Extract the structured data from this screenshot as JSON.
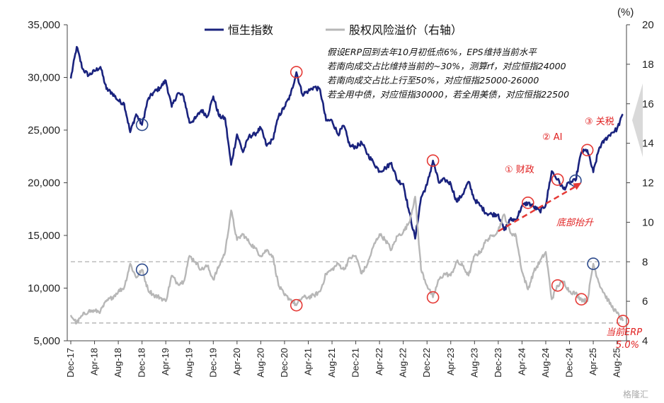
{
  "chart_data": {
    "type": "line",
    "left_axis": {
      "ticks": [
        "35,000",
        "30,000",
        "25,000",
        "20,000",
        "15,000",
        "10,000",
        "5,000"
      ],
      "ylim": [
        5000,
        35000
      ]
    },
    "right_axis": {
      "unit": "(%)",
      "ticks": [
        "20",
        "18",
        "16",
        "14",
        "12",
        "10",
        "8",
        "6",
        "4"
      ],
      "ylim": [
        4,
        20
      ]
    },
    "x_ticks": [
      "Dec-17",
      "Apr-18",
      "Aug-18",
      "Dec-18",
      "Apr-19",
      "Aug-19",
      "Dec-19",
      "Apr-20",
      "Aug-20",
      "Dec-20",
      "Apr-21",
      "Aug-21",
      "Dec-21",
      "Apr-22",
      "Aug-22",
      "Dec-22",
      "Apr-23",
      "Aug-23",
      "Dec-23",
      "Apr-24",
      "Aug-24",
      "Dec-24",
      "Apr-25",
      "Aug-25"
    ],
    "series": [
      {
        "name": "恒生指数",
        "color": "#1a237e",
        "axis": "left",
        "points": [
          [
            "2017-12",
            29900
          ],
          [
            "2018-01",
            32900
          ],
          [
            "2018-02",
            30800
          ],
          [
            "2018-03",
            30200
          ],
          [
            "2018-04",
            30600
          ],
          [
            "2018-05",
            31000
          ],
          [
            "2018-06",
            28900
          ],
          [
            "2018-07",
            28500
          ],
          [
            "2018-08",
            27800
          ],
          [
            "2018-09",
            27500
          ],
          [
            "2018-10",
            24800
          ],
          [
            "2018-11",
            26500
          ],
          [
            "2018-12",
            25500
          ],
          [
            "2019-01",
            27900
          ],
          [
            "2019-02",
            28600
          ],
          [
            "2019-03",
            29000
          ],
          [
            "2019-04",
            29700
          ],
          [
            "2019-05",
            27200
          ],
          [
            "2019-06",
            28500
          ],
          [
            "2019-07",
            28200
          ],
          [
            "2019-08",
            25700
          ],
          [
            "2019-09",
            26100
          ],
          [
            "2019-10",
            26900
          ],
          [
            "2019-11",
            26300
          ],
          [
            "2019-12",
            28200
          ],
          [
            "2020-01",
            26300
          ],
          [
            "2020-02",
            26100
          ],
          [
            "2020-03",
            21700
          ],
          [
            "2020-04",
            24600
          ],
          [
            "2020-05",
            22900
          ],
          [
            "2020-06",
            24400
          ],
          [
            "2020-07",
            24600
          ],
          [
            "2020-08",
            25200
          ],
          [
            "2020-09",
            23500
          ],
          [
            "2020-10",
            24100
          ],
          [
            "2020-11",
            26300
          ],
          [
            "2020-12",
            27200
          ],
          [
            "2021-01",
            28300
          ],
          [
            "2021-02",
            30500
          ],
          [
            "2021-03",
            28400
          ],
          [
            "2021-04",
            28700
          ],
          [
            "2021-05",
            29100
          ],
          [
            "2021-06",
            28800
          ],
          [
            "2021-07",
            25900
          ],
          [
            "2021-08",
            25900
          ],
          [
            "2021-09",
            24600
          ],
          [
            "2021-10",
            25400
          ],
          [
            "2021-11",
            23500
          ],
          [
            "2021-12",
            23400
          ],
          [
            "2022-01",
            23800
          ],
          [
            "2022-02",
            22700
          ],
          [
            "2022-03",
            21900
          ],
          [
            "2022-04",
            21100
          ],
          [
            "2022-05",
            21400
          ],
          [
            "2022-06",
            21900
          ],
          [
            "2022-07",
            20200
          ],
          [
            "2022-08",
            19900
          ],
          [
            "2022-09",
            17200
          ],
          [
            "2022-10",
            14700
          ],
          [
            "2022-11",
            18600
          ],
          [
            "2022-12",
            19800
          ],
          [
            "2023-01",
            22100
          ],
          [
            "2023-02",
            20000
          ],
          [
            "2023-03",
            20300
          ],
          [
            "2023-04",
            19900
          ],
          [
            "2023-05",
            18200
          ],
          [
            "2023-06",
            18900
          ],
          [
            "2023-07",
            20100
          ],
          [
            "2023-08",
            18400
          ],
          [
            "2023-09",
            17800
          ],
          [
            "2023-10",
            17100
          ],
          [
            "2023-11",
            17000
          ],
          [
            "2023-12",
            17000
          ],
          [
            "2024-01",
            15500
          ],
          [
            "2024-02",
            16500
          ],
          [
            "2024-03",
            16500
          ],
          [
            "2024-04",
            17800
          ],
          [
            "2024-05",
            18100
          ],
          [
            "2024-06",
            17700
          ],
          [
            "2024-07",
            17300
          ],
          [
            "2024-08",
            17900
          ],
          [
            "2024-09",
            21100
          ],
          [
            "2024-10",
            20300
          ],
          [
            "2024-11",
            19400
          ],
          [
            "2024-12",
            20000
          ],
          [
            "2025-01",
            20200
          ],
          [
            "2025-02",
            22900
          ],
          [
            "2025-03",
            23100
          ],
          [
            "2025-04",
            21000
          ],
          [
            "2025-05",
            23300
          ],
          [
            "2025-06",
            24100
          ],
          [
            "2025-07",
            24700
          ],
          [
            "2025-08",
            25100
          ],
          [
            "2025-09",
            26500
          ]
        ]
      },
      {
        "name": "股权风险溢价（右轴）",
        "color": "#b7b7b7",
        "axis": "right",
        "points": [
          [
            "2017-12",
            5.3
          ],
          [
            "2018-01",
            4.9
          ],
          [
            "2018-02",
            5.3
          ],
          [
            "2018-03",
            5.5
          ],
          [
            "2018-04",
            5.5
          ],
          [
            "2018-05",
            5.5
          ],
          [
            "2018-06",
            6.0
          ],
          [
            "2018-07",
            6.2
          ],
          [
            "2018-08",
            6.5
          ],
          [
            "2018-09",
            6.7
          ],
          [
            "2018-10",
            7.9
          ],
          [
            "2018-11",
            7.2
          ],
          [
            "2018-12",
            7.6
          ],
          [
            "2019-01",
            6.6
          ],
          [
            "2019-02",
            6.3
          ],
          [
            "2019-03",
            6.2
          ],
          [
            "2019-04",
            6.0
          ],
          [
            "2019-05",
            7.3
          ],
          [
            "2019-06",
            6.9
          ],
          [
            "2019-07",
            7.0
          ],
          [
            "2019-08",
            8.3
          ],
          [
            "2019-09",
            8.0
          ],
          [
            "2019-10",
            7.6
          ],
          [
            "2019-11",
            7.8
          ],
          [
            "2019-12",
            7.1
          ],
          [
            "2020-01",
            7.8
          ],
          [
            "2020-02",
            8.5
          ],
          [
            "2020-03",
            10.6
          ],
          [
            "2020-04",
            9.1
          ],
          [
            "2020-05",
            9.4
          ],
          [
            "2020-06",
            9.0
          ],
          [
            "2020-07",
            8.7
          ],
          [
            "2020-08",
            8.3
          ],
          [
            "2020-09",
            8.6
          ],
          [
            "2020-10",
            8.3
          ],
          [
            "2020-11",
            6.8
          ],
          [
            "2020-12",
            6.3
          ],
          [
            "2021-01",
            6.1
          ],
          [
            "2021-02",
            5.8
          ],
          [
            "2021-03",
            6.2
          ],
          [
            "2021-04",
            6.2
          ],
          [
            "2021-05",
            6.3
          ],
          [
            "2021-06",
            6.5
          ],
          [
            "2021-07",
            7.4
          ],
          [
            "2021-08",
            7.6
          ],
          [
            "2021-09",
            7.9
          ],
          [
            "2021-10",
            7.6
          ],
          [
            "2021-11",
            8.2
          ],
          [
            "2021-12",
            8.3
          ],
          [
            "2022-01",
            7.4
          ],
          [
            "2022-02",
            7.9
          ],
          [
            "2022-03",
            8.8
          ],
          [
            "2022-04",
            9.4
          ],
          [
            "2022-05",
            9.1
          ],
          [
            "2022-06",
            8.6
          ],
          [
            "2022-07",
            9.3
          ],
          [
            "2022-08",
            9.5
          ],
          [
            "2022-09",
            10.0
          ],
          [
            "2022-10",
            11.3
          ],
          [
            "2022-11",
            7.6
          ],
          [
            "2022-12",
            6.8
          ],
          [
            "2023-01",
            6.2
          ],
          [
            "2023-02",
            7.1
          ],
          [
            "2023-03",
            7.4
          ],
          [
            "2023-04",
            7.3
          ],
          [
            "2023-05",
            8.0
          ],
          [
            "2023-06",
            7.8
          ],
          [
            "2023-07",
            7.3
          ],
          [
            "2023-08",
            8.3
          ],
          [
            "2023-09",
            8.5
          ],
          [
            "2023-10",
            9.1
          ],
          [
            "2023-11",
            9.3
          ],
          [
            "2023-12",
            9.6
          ],
          [
            "2024-01",
            10.4
          ],
          [
            "2024-02",
            9.5
          ],
          [
            "2024-03",
            9.3
          ],
          [
            "2024-04",
            7.5
          ],
          [
            "2024-05",
            6.6
          ],
          [
            "2024-06",
            7.5
          ],
          [
            "2024-07",
            8.0
          ],
          [
            "2024-08",
            8.5
          ],
          [
            "2024-09",
            6.1
          ],
          [
            "2024-10",
            6.8
          ],
          [
            "2024-11",
            7.0
          ],
          [
            "2024-12",
            6.5
          ],
          [
            "2025-01",
            6.4
          ],
          [
            "2025-02",
            6.1
          ],
          [
            "2025-03",
            6.0
          ],
          [
            "2025-04",
            7.9
          ],
          [
            "2025-05",
            6.9
          ],
          [
            "2025-06",
            6.3
          ],
          [
            "2025-07",
            5.8
          ],
          [
            "2025-08",
            5.4
          ],
          [
            "2025-09",
            5.0
          ]
        ]
      }
    ],
    "reference_lines": [
      {
        "axis": "right",
        "value": 8.0,
        "style": "dashed",
        "color": "#bdbdbd"
      },
      {
        "axis": "right",
        "value": 4.9,
        "style": "dashed",
        "color": "#bdbdbd"
      }
    ],
    "annotations": {
      "box_lines": [
        "假设ERP回到去年10月初低点6%，EPS维持当前水平",
        "若南向成交占比维持当前的~30%，测算rf，对应恒指24000",
        "若南向成交占比上行至50%，对应恒指25000-26000",
        "若全用中债，对应恒指30000，若全用美债，对应恒指22500"
      ],
      "fiscal": "① 财政",
      "ai": "② AI",
      "tariff": "③ 关税",
      "bottom_rise": "底部抬升",
      "current_erp": "当前ERP",
      "current_erp_value": "5.0%"
    },
    "markers": [
      {
        "series": "恒生指数",
        "date": "2018-12",
        "color": "navy"
      },
      {
        "series": "恒生指数",
        "date": "2021-02",
        "color": "red"
      },
      {
        "series": "恒生指数",
        "date": "2023-01",
        "color": "red"
      },
      {
        "series": "恒生指数",
        "date": "2024-05",
        "color": "red"
      },
      {
        "series": "恒生指数",
        "date": "2024-10",
        "color": "red"
      },
      {
        "series": "恒生指数",
        "date": "2025-01",
        "color": "navy"
      },
      {
        "series": "恒生指数",
        "date": "2025-03",
        "color": "red"
      },
      {
        "series": "股权风险溢价（右轴）",
        "date": "2018-12",
        "color": "navy"
      },
      {
        "series": "股权风险溢价（右轴）",
        "date": "2021-02",
        "color": "red"
      },
      {
        "series": "股权风险溢价（右轴）",
        "date": "2023-01",
        "color": "red"
      },
      {
        "series": "股权风险溢价（右轴）",
        "date": "2024-10",
        "color": "red"
      },
      {
        "series": "股权风险溢价（右轴）",
        "date": "2025-02",
        "color": "red"
      },
      {
        "series": "股权风险溢价（右轴）",
        "date": "2025-04",
        "color": "navy"
      },
      {
        "series": "股权风险溢价（右轴）",
        "date": "2025-09",
        "color": "red"
      }
    ],
    "arrow": {
      "from": [
        "2023-12",
        15400
      ],
      "to": [
        "2025-02",
        20000
      ],
      "color": "#e53935",
      "style": "dashed"
    },
    "watermark": "格隆汇"
  }
}
